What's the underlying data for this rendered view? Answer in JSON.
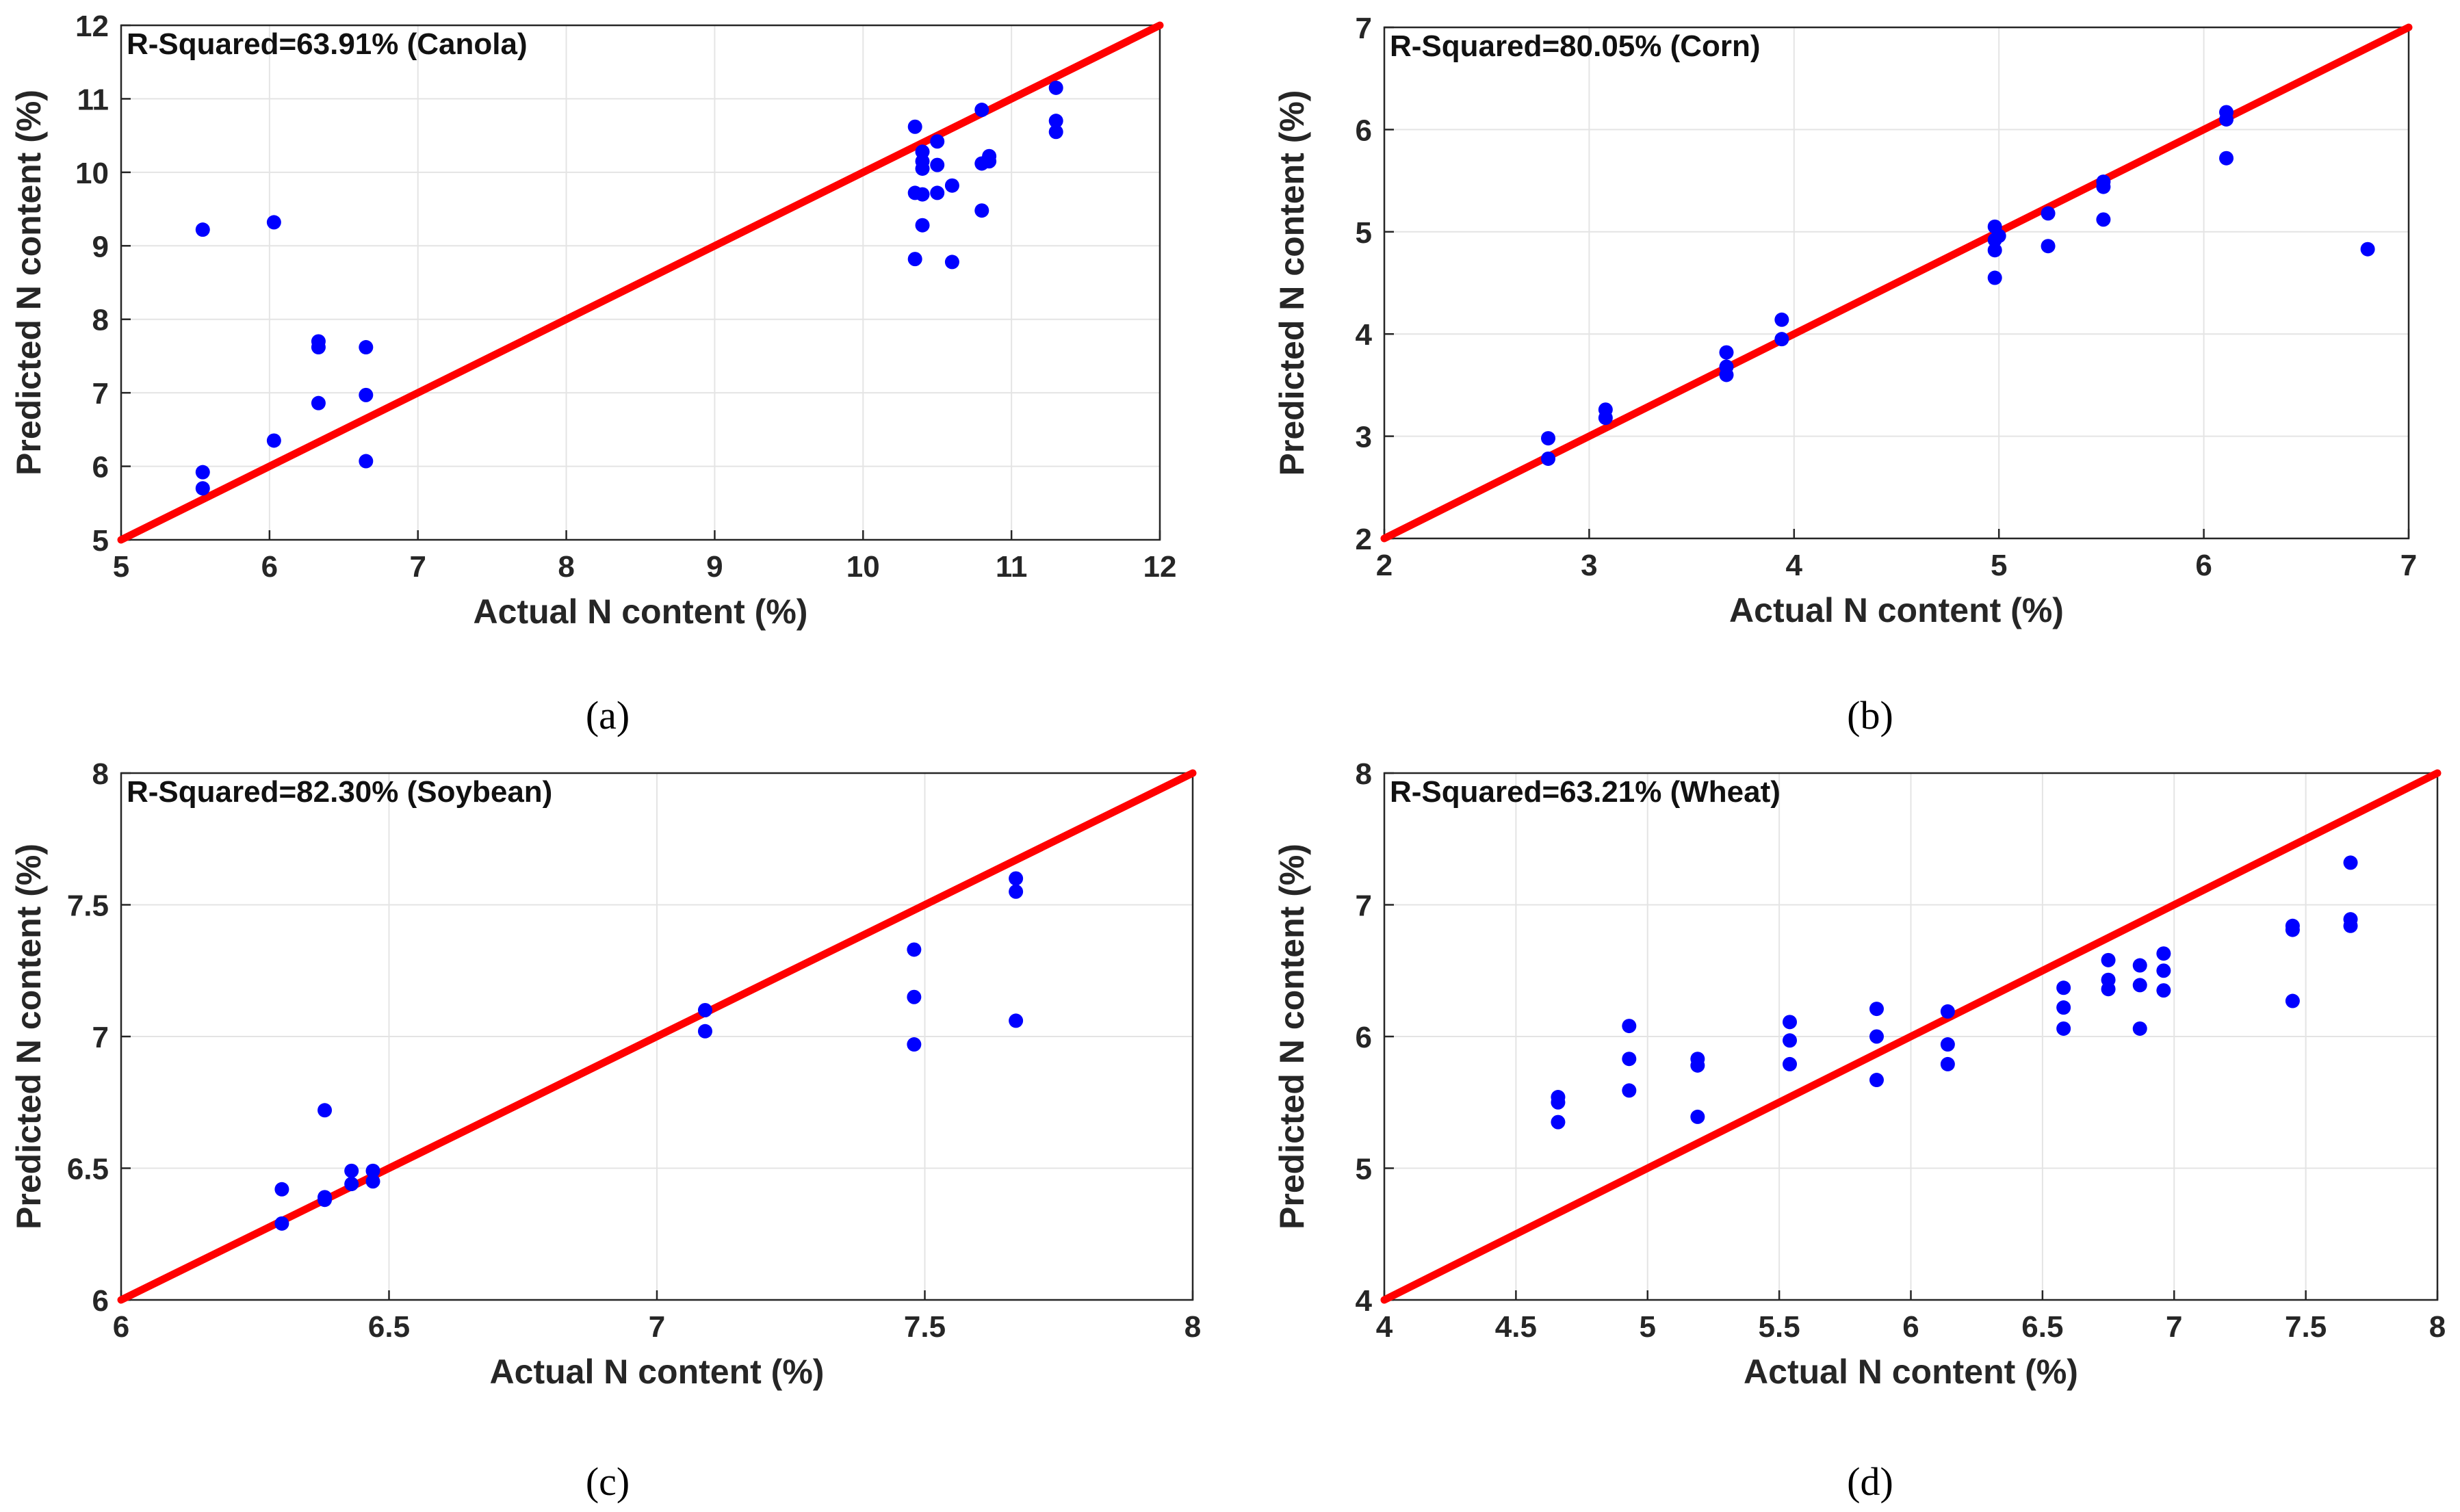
{
  "chart_data": [
    {
      "panel": "(a)",
      "type": "scatter",
      "annotation": "R-Squared=63.91% (Canola)",
      "xlabel": "Actual N content (%)",
      "ylabel": "Predicted N content (%)",
      "xlim": [
        5,
        12
      ],
      "ylim": [
        5,
        12
      ],
      "xticks": [
        5,
        6,
        7,
        8,
        9,
        10,
        11,
        12
      ],
      "yticks": [
        5,
        6,
        7,
        8,
        9,
        10,
        11,
        12
      ],
      "xtick_labels": [
        "5",
        "6",
        "7",
        "8",
        "9",
        "10",
        "11",
        "12"
      ],
      "ytick_labels": [
        "5",
        "6",
        "7",
        "8",
        "9",
        "10",
        "11",
        "12"
      ],
      "grid": true,
      "fit_line": [
        [
          5,
          5
        ],
        [
          12,
          12
        ]
      ],
      "points": [
        [
          5.55,
          9.22
        ],
        [
          5.55,
          5.92
        ],
        [
          5.55,
          5.7
        ],
        [
          6.03,
          9.32
        ],
        [
          6.03,
          6.35
        ],
        [
          6.33,
          7.7
        ],
        [
          6.33,
          7.62
        ],
        [
          6.33,
          6.86
        ],
        [
          6.65,
          7.62
        ],
        [
          6.65,
          6.97
        ],
        [
          6.65,
          6.07
        ],
        [
          10.35,
          10.62
        ],
        [
          10.35,
          9.72
        ],
        [
          10.35,
          8.82
        ],
        [
          10.4,
          10.28
        ],
        [
          10.4,
          10.15
        ],
        [
          10.4,
          10.05
        ],
        [
          10.4,
          9.7
        ],
        [
          10.4,
          9.28
        ],
        [
          10.5,
          10.42
        ],
        [
          10.5,
          10.1
        ],
        [
          10.5,
          9.72
        ],
        [
          10.6,
          9.82
        ],
        [
          10.6,
          8.78
        ],
        [
          10.8,
          10.85
        ],
        [
          10.8,
          10.12
        ],
        [
          10.8,
          9.48
        ],
        [
          10.85,
          10.22
        ],
        [
          10.85,
          10.15
        ],
        [
          11.3,
          11.15
        ],
        [
          11.3,
          10.7
        ],
        [
          11.3,
          10.55
        ]
      ]
    },
    {
      "panel": "(b)",
      "type": "scatter",
      "annotation": "R-Squared=80.05% (Corn)",
      "xlabel": "Actual N content (%)",
      "ylabel": "Predicted N content (%)",
      "xlim": [
        2,
        7
      ],
      "ylim": [
        2,
        7
      ],
      "xticks": [
        2,
        3,
        4,
        5,
        6,
        7
      ],
      "yticks": [
        2,
        3,
        4,
        5,
        6,
        7
      ],
      "xtick_labels": [
        "2",
        "3",
        "4",
        "5",
        "6",
        "7"
      ],
      "ytick_labels": [
        "2",
        "3",
        "4",
        "5",
        "6",
        "7"
      ],
      "grid": true,
      "fit_line": [
        [
          2,
          2
        ],
        [
          7,
          7
        ]
      ],
      "points": [
        [
          2.8,
          2.98
        ],
        [
          2.8,
          2.78
        ],
        [
          3.08,
          3.26
        ],
        [
          3.08,
          3.18
        ],
        [
          3.67,
          3.82
        ],
        [
          3.67,
          3.68
        ],
        [
          3.67,
          3.6
        ],
        [
          3.94,
          4.14
        ],
        [
          3.94,
          3.95
        ],
        [
          4.98,
          5.05
        ],
        [
          4.98,
          4.92
        ],
        [
          4.98,
          4.82
        ],
        [
          4.98,
          4.55
        ],
        [
          5.0,
          4.96
        ],
        [
          5.24,
          5.18
        ],
        [
          5.24,
          4.86
        ],
        [
          5.51,
          5.49
        ],
        [
          5.51,
          5.44
        ],
        [
          5.51,
          5.12
        ],
        [
          6.11,
          6.17
        ],
        [
          6.11,
          6.1
        ],
        [
          6.11,
          5.72
        ],
        [
          6.8,
          4.83
        ]
      ]
    },
    {
      "panel": "(c)",
      "type": "scatter",
      "annotation": "R-Squared=82.30% (Soybean)",
      "xlabel": "Actual N content (%)",
      "ylabel": "Predicted N content (%)",
      "xlim": [
        6,
        8
      ],
      "ylim": [
        6,
        8
      ],
      "xticks": [
        6,
        6.5,
        7,
        7.5,
        8
      ],
      "yticks": [
        6,
        6.5,
        7,
        7.5,
        8
      ],
      "xtick_labels": [
        "6",
        "6.5",
        "7",
        "7.5",
        "8"
      ],
      "ytick_labels": [
        "6",
        "6.5",
        "7",
        "7.5",
        "8"
      ],
      "grid": true,
      "fit_line": [
        [
          6,
          6
        ],
        [
          8,
          8
        ]
      ],
      "points": [
        [
          6.3,
          6.42
        ],
        [
          6.3,
          6.29
        ],
        [
          6.38,
          6.72
        ],
        [
          6.38,
          6.39
        ],
        [
          6.38,
          6.38
        ],
        [
          6.43,
          6.49
        ],
        [
          6.43,
          6.44
        ],
        [
          6.47,
          6.49
        ],
        [
          6.47,
          6.45
        ],
        [
          7.09,
          7.1
        ],
        [
          7.09,
          7.02
        ],
        [
          7.48,
          7.33
        ],
        [
          7.48,
          7.15
        ],
        [
          7.48,
          6.97
        ],
        [
          7.67,
          7.6
        ],
        [
          7.67,
          7.55
        ],
        [
          7.67,
          7.06
        ]
      ]
    },
    {
      "panel": "(d)",
      "type": "scatter",
      "annotation": "R-Squared=63.21% (Wheat)",
      "xlabel": "Actual N content (%)",
      "ylabel": "Predicted N content (%)",
      "xlim": [
        4,
        8
      ],
      "ylim": [
        4,
        8
      ],
      "xticks": [
        4,
        4.5,
        5,
        5.5,
        6,
        6.5,
        7,
        7.5,
        8
      ],
      "yticks": [
        4,
        5,
        6,
        7,
        8
      ],
      "xtick_labels": [
        "4",
        "4.5",
        "5",
        "5.5",
        "6",
        "6.5",
        "7",
        "7.5",
        "8"
      ],
      "ytick_labels": [
        "4",
        "5",
        "6",
        "7",
        "8"
      ],
      "grid": true,
      "fit_line": [
        [
          4,
          4
        ],
        [
          8,
          8
        ]
      ],
      "points": [
        [
          4.66,
          5.54
        ],
        [
          4.66,
          5.5
        ],
        [
          4.66,
          5.35
        ],
        [
          4.93,
          6.08
        ],
        [
          4.93,
          5.83
        ],
        [
          4.93,
          5.59
        ],
        [
          5.19,
          5.83
        ],
        [
          5.19,
          5.78
        ],
        [
          5.19,
          5.39
        ],
        [
          5.54,
          6.11
        ],
        [
          5.54,
          5.97
        ],
        [
          5.54,
          5.79
        ],
        [
          5.87,
          6.21
        ],
        [
          5.87,
          6.0
        ],
        [
          5.87,
          5.67
        ],
        [
          6.14,
          6.19
        ],
        [
          6.14,
          5.94
        ],
        [
          6.14,
          5.79
        ],
        [
          6.58,
          6.37
        ],
        [
          6.58,
          6.22
        ],
        [
          6.58,
          6.06
        ],
        [
          6.75,
          6.58
        ],
        [
          6.75,
          6.43
        ],
        [
          6.75,
          6.36
        ],
        [
          6.87,
          6.54
        ],
        [
          6.87,
          6.39
        ],
        [
          6.87,
          6.06
        ],
        [
          6.96,
          6.63
        ],
        [
          6.96,
          6.5
        ],
        [
          6.96,
          6.35
        ],
        [
          7.45,
          6.84
        ],
        [
          7.45,
          6.81
        ],
        [
          7.45,
          6.27
        ],
        [
          7.67,
          7.32
        ],
        [
          7.67,
          6.89
        ],
        [
          7.67,
          6.84
        ]
      ]
    }
  ],
  "colors": {
    "point": "#0000ff",
    "fit_line": "#ff0000",
    "grid": "#e4e4e4",
    "axes": "#262626",
    "text": "#262626",
    "caption": "#000000",
    "background": "#ffffff"
  }
}
